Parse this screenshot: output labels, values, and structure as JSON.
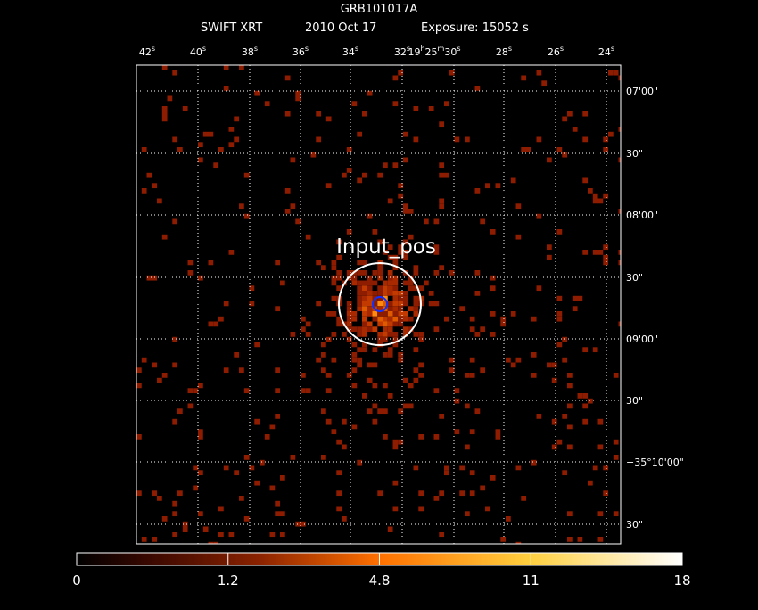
{
  "header": {
    "title": "GRB101017A",
    "instrument": "SWIFT XRT",
    "date": "2010 Oct 17",
    "exposure": "Exposure: 15052 s"
  },
  "ra_labels": [
    [
      [
        "42",
        "s"
      ]
    ],
    [
      [
        "40",
        "s"
      ]
    ],
    [
      [
        "38",
        "s"
      ]
    ],
    [
      [
        "36",
        "s"
      ]
    ],
    [
      [
        "34",
        "s"
      ]
    ],
    [
      [
        "32",
        "s"
      ]
    ],
    [
      [
        "19",
        "h"
      ],
      [
        "25",
        "m"
      ],
      [
        "30",
        "s"
      ]
    ],
    [
      [
        "28",
        "s"
      ]
    ],
    [
      [
        "26",
        "s"
      ]
    ],
    [
      [
        "24",
        "s"
      ]
    ]
  ],
  "dec_labels": [
    "07'00\"",
    "30\"",
    "08'00\"",
    "30\"",
    "09'00\"",
    "30\"",
    "−35°10'00\"",
    "30\""
  ],
  "source_label": "Input_pos",
  "colorbar_labels": [
    "0",
    "1.2",
    "4.8",
    "11",
    "18"
  ]
}
